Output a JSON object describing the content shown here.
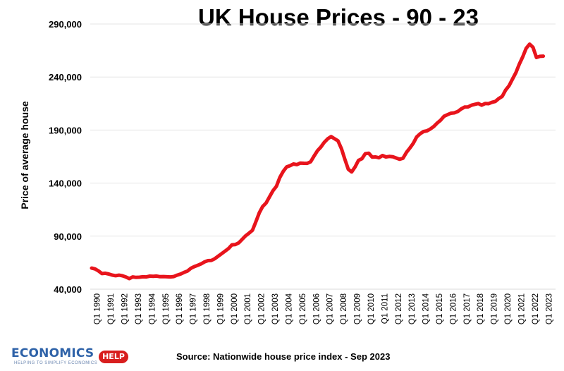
{
  "chart_data": {
    "type": "line",
    "title": "UK House Prices - 90 - 23",
    "ylabel": "Price of average house",
    "xlabel": "",
    "ylim": [
      40000,
      290000
    ],
    "yticks": [
      "40,000",
      "90,000",
      "140,000",
      "190,000",
      "240,000",
      "290,000"
    ],
    "ytick_values": [
      40000,
      90000,
      140000,
      190000,
      240000,
      290000
    ],
    "x_tick_labels": [
      "Q1 1990",
      "Q1 1991",
      "Q1 1992",
      "Q1 1993",
      "Q1 1994",
      "Q1 1995",
      "Q1 1996",
      "Q1 1997",
      "Q1 1998",
      "Q1 1999",
      "Q1 2000",
      "Q1 2001",
      "Q1 2002",
      "Q1 2003",
      "Q1 2004",
      "Q1 2005",
      "Q1 2006",
      "Q1 2007",
      "Q1 2008",
      "Q1 2009",
      "Q1 2010",
      "Q1 2011",
      "Q1 2012",
      "Q1 2013",
      "Q1 2014",
      "Q1 2015",
      "Q1 2016",
      "Q1 2017",
      "Q1 2018",
      "Q1 2019",
      "Q1 2020",
      "Q1 2021",
      "Q1 2022",
      "Q1 2023"
    ],
    "line_color": "#e8141c",
    "grid": true,
    "series": [
      {
        "values": [
          59900,
          59100,
          57200,
          54700,
          55000,
          54300,
          53300,
          52700,
          53200,
          52600,
          51500,
          50000,
          51600,
          51100,
          51300,
          51700,
          51600,
          52300,
          52200,
          52400,
          51800,
          51900,
          51700,
          51600,
          51900,
          53200,
          54300,
          55800,
          57100,
          59700,
          61300,
          62500,
          63900,
          65700,
          66900,
          67100,
          68700,
          71200,
          73500,
          75900,
          78300,
          81800,
          82100,
          83700,
          87000,
          90300,
          92800,
          95500,
          103500,
          112000,
          118000,
          121300,
          127200,
          132800,
          137000,
          145300,
          151100,
          155300,
          156400,
          158000,
          157400,
          158900,
          158700,
          158600,
          160100,
          165400,
          170500,
          174000,
          178500,
          181800,
          183900,
          181800,
          179900,
          172500,
          162600,
          153100,
          150500,
          155300,
          161400,
          163000,
          167800,
          168200,
          164500,
          164700,
          163900,
          166000,
          164700,
          165100,
          164900,
          163700,
          162500,
          163400,
          168900,
          173000,
          177500,
          183500,
          186500,
          188600,
          189300,
          191000,
          193400,
          196600,
          199300,
          203000,
          204500,
          205900,
          206200,
          207500,
          209900,
          211700,
          211800,
          213400,
          214300,
          215000,
          213500,
          215000,
          214900,
          216100,
          217000,
          219700,
          221800,
          227700,
          231800,
          238000,
          244200,
          252200,
          259100,
          267000,
          271000,
          268000,
          258400,
          259500,
          259700
        ]
      }
    ]
  },
  "source": "Source: Nationwide house price index - Sep 2023",
  "logo": {
    "word": "ECONOMICS",
    "badge": "HELP",
    "tagline": "HELPING TO SIMPLIFY ECONOMICS"
  }
}
